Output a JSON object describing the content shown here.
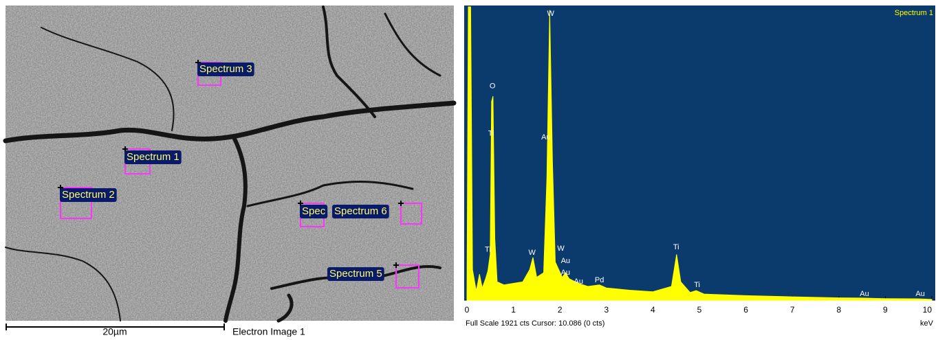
{
  "sem": {
    "labels": [
      "Spectrum 3",
      "Spectrum 1",
      "Spectrum 2",
      "Spec",
      "Spectrum 6",
      "Spectrum 5"
    ],
    "scale_bar": "20µm",
    "caption": "Electron Image 1"
  },
  "chart_data": {
    "type": "area",
    "title": "Spectrum 1",
    "color": "#ffff00",
    "background": "#0b3a6c",
    "xlabel": "keV",
    "footer": "Full Scale 1921 cts Cursor: 10.086  (0 cts)",
    "xlim": [
      0,
      10
    ],
    "ylim": [
      0,
      1921
    ],
    "xticks": [
      0,
      1,
      2,
      3,
      4,
      5,
      6,
      7,
      8,
      9,
      10
    ],
    "x": [
      0,
      0.03,
      0.08,
      0.12,
      0.2,
      0.27,
      0.33,
      0.4,
      0.45,
      0.5,
      0.53,
      0.56,
      0.6,
      0.65,
      0.8,
      1.0,
      1.2,
      1.35,
      1.42,
      1.5,
      1.65,
      1.72,
      1.78,
      1.84,
      1.9,
      2.05,
      2.12,
      2.2,
      2.4,
      2.6,
      2.85,
      3.0,
      3.5,
      4.0,
      4.4,
      4.51,
      4.6,
      4.8,
      4.93,
      5.1,
      6,
      7,
      8,
      8.5,
      9,
      9.7,
      10
    ],
    "values": [
      0,
      1921,
      1921,
      200,
      60,
      170,
      80,
      140,
      190,
      300,
      1300,
      1336,
      400,
      120,
      100,
      110,
      120,
      200,
      280,
      150,
      180,
      800,
      1900,
      900,
      250,
      150,
      180,
      140,
      110,
      90,
      100,
      80,
      65,
      55,
      90,
      300,
      120,
      50,
      63,
      40,
      30,
      22,
      15,
      14,
      10,
      9,
      5
    ],
    "annotations": [
      {
        "text": "W",
        "x": 1.8,
        "y": 1875
      },
      {
        "text": "O",
        "x": 0.55,
        "y": 1400
      },
      {
        "text": "Ti",
        "x": 0.52,
        "y": 1090
      },
      {
        "text": "Au",
        "x": 1.7,
        "y": 1066
      },
      {
        "text": "Ti",
        "x": 0.45,
        "y": 330
      },
      {
        "text": "W",
        "x": 1.4,
        "y": 310
      },
      {
        "text": "W",
        "x": 2.02,
        "y": 337
      },
      {
        "text": "Au",
        "x": 2.12,
        "y": 256
      },
      {
        "text": "Au",
        "x": 2.12,
        "y": 180
      },
      {
        "text": "Au",
        "x": 2.4,
        "y": 121
      },
      {
        "text": "Pd",
        "x": 2.85,
        "y": 130
      },
      {
        "text": "Ti",
        "x": 4.5,
        "y": 346
      },
      {
        "text": "Ti",
        "x": 4.95,
        "y": 99
      },
      {
        "text": "Au",
        "x": 8.55,
        "y": 40
      },
      {
        "text": "Au",
        "x": 9.75,
        "y": 40
      }
    ]
  }
}
